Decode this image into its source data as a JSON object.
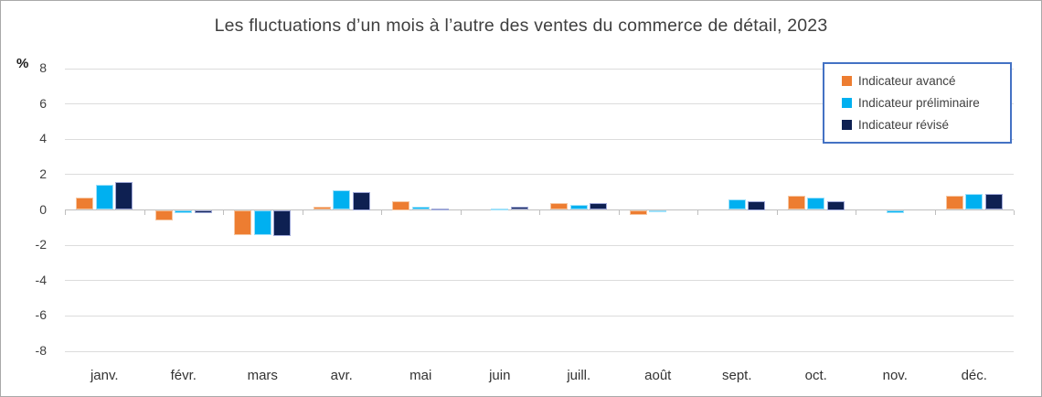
{
  "title": "Les fluctuations d’un mois à l’autre des ventes du commerce de détail, 2023",
  "y_axis_unit": "%",
  "chart_data": {
    "type": "bar",
    "title": "Les fluctuations d’un mois à l’autre des ventes du commerce de détail, 2023",
    "xlabel": "",
    "ylabel": "%",
    "ylim": [
      -8,
      8
    ],
    "yticks": [
      8,
      6,
      4,
      2,
      0,
      -2,
      -4,
      -6,
      -8
    ],
    "grid": "horizontal",
    "legend_position": "top-right",
    "categories": [
      "janv.",
      "févr.",
      "mars",
      "avr.",
      "mai",
      "juin",
      "juill.",
      "août",
      "sept.",
      "oct.",
      "nov.",
      "déc."
    ],
    "series": [
      {
        "name": "Indicateur avancé",
        "color": "#ED7D31",
        "border_color": "#F6C7A2",
        "values": [
          0.7,
          -0.6,
          -1.4,
          0.2,
          0.5,
          0.0,
          0.4,
          -0.3,
          0.0,
          0.8,
          0.0,
          0.8
        ]
      },
      {
        "name": "Indicateur préliminaire",
        "color": "#00B0F0",
        "border_color": "#9EE1FA",
        "values": [
          1.4,
          -0.2,
          -1.4,
          1.1,
          0.2,
          0.1,
          0.3,
          -0.1,
          0.6,
          0.7,
          -0.2,
          0.9
        ]
      },
      {
        "name": "Indicateur révisé",
        "color": "#0E2052",
        "border_color": "#9FA8D8",
        "values": [
          1.6,
          -0.2,
          -1.5,
          1.0,
          0.1,
          0.2,
          0.4,
          0.0,
          0.5,
          0.5,
          0.0,
          0.9
        ]
      }
    ]
  },
  "legend": {
    "border_color": "#4472C4",
    "items": [
      "Indicateur avancé",
      "Indicateur préliminaire",
      "Indicateur révisé"
    ]
  }
}
